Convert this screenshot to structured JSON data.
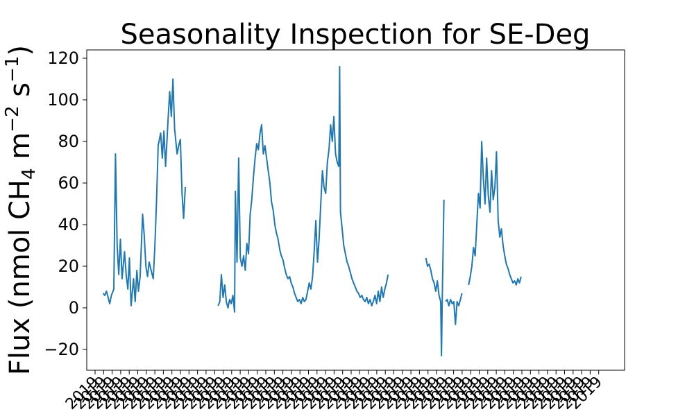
{
  "chart_data": {
    "type": "line",
    "title": "Seasonality Inspection for SE-Deg",
    "ylabel": "Flux (nmol CH",
    "ylabel_subscript": "4",
    "ylabel_mid": " m",
    "ylabel_sup1": "−2",
    "ylabel_mid2": " s",
    "ylabel_sup2": "−1",
    "ylabel_end": ")",
    "xlabel": "",
    "ylim": [
      -30,
      124
    ],
    "xlim": [
      2016.85,
      2023.4
    ],
    "yticks": [
      -20,
      0,
      20,
      40,
      60,
      80,
      100,
      120
    ],
    "ytick_labels": [
      "−20",
      "0",
      "20",
      "40",
      "60",
      "80",
      "100",
      "120"
    ],
    "xtick_label": "2019",
    "xtick_count": 60,
    "grid": false,
    "legend": "none",
    "line_color": "#1f77b4",
    "series": [
      {
        "segments": [
          [
            [
              2017.05,
              7
            ],
            [
              2017.07,
              6
            ],
            [
              2017.09,
              8
            ],
            [
              2017.11,
              5
            ],
            [
              2017.13,
              2
            ],
            [
              2017.15,
              6
            ],
            [
              2017.18,
              9
            ],
            [
              2017.2,
              74
            ],
            [
              2017.22,
              30
            ],
            [
              2017.24,
              16
            ],
            [
              2017.26,
              33
            ],
            [
              2017.28,
              14
            ],
            [
              2017.31,
              27
            ],
            [
              2017.33,
              16
            ],
            [
              2017.35,
              9
            ],
            [
              2017.37,
              24
            ],
            [
              2017.39,
              1
            ],
            [
              2017.42,
              14
            ],
            [
              2017.44,
              3
            ],
            [
              2017.46,
              18
            ],
            [
              2017.48,
              8
            ],
            [
              2017.5,
              15
            ],
            [
              2017.53,
              45
            ],
            [
              2017.55,
              35
            ],
            [
              2017.57,
              20
            ],
            [
              2017.59,
              15
            ],
            [
              2017.61,
              22
            ],
            [
              2017.64,
              17
            ],
            [
              2017.66,
              14
            ],
            [
              2017.68,
              30
            ],
            [
              2017.7,
              52
            ],
            [
              2017.72,
              78
            ],
            [
              2017.75,
              84
            ],
            [
              2017.77,
              72
            ],
            [
              2017.79,
              85
            ],
            [
              2017.81,
              68
            ],
            [
              2017.84,
              90
            ],
            [
              2017.86,
              104
            ],
            [
              2017.88,
              92
            ],
            [
              2017.9,
              110
            ],
            [
              2017.92,
              86
            ],
            [
              2017.95,
              74
            ],
            [
              2017.97,
              78
            ],
            [
              2017.99,
              81
            ],
            [
              2018.01,
              55
            ],
            [
              2018.03,
              43
            ],
            [
              2018.05,
              58
            ]
          ],
          [
            [
              2018.45,
              1
            ],
            [
              2018.47,
              3
            ],
            [
              2018.49,
              16
            ],
            [
              2018.51,
              5
            ],
            [
              2018.53,
              11
            ],
            [
              2018.55,
              3
            ],
            [
              2018.57,
              0
            ],
            [
              2018.59,
              4
            ],
            [
              2018.61,
              2
            ],
            [
              2018.63,
              6
            ],
            [
              2018.65,
              -2
            ],
            [
              2018.66,
              56
            ],
            [
              2018.68,
              22
            ],
            [
              2018.7,
              72
            ],
            [
              2018.72,
              24
            ],
            [
              2018.74,
              20
            ],
            [
              2018.76,
              25
            ],
            [
              2018.78,
              18
            ],
            [
              2018.8,
              31
            ],
            [
              2018.82,
              26
            ],
            [
              2018.84,
              45
            ],
            [
              2018.86,
              52
            ],
            [
              2018.88,
              63
            ],
            [
              2018.9,
              72
            ],
            [
              2018.92,
              79
            ],
            [
              2018.94,
              76
            ],
            [
              2018.96,
              84
            ],
            [
              2018.98,
              88
            ],
            [
              2019.0,
              74
            ],
            [
              2019.02,
              78
            ],
            [
              2019.04,
              72
            ],
            [
              2019.06,
              66
            ],
            [
              2019.08,
              60
            ],
            [
              2019.1,
              51
            ],
            [
              2019.12,
              47
            ],
            [
              2019.14,
              40
            ],
            [
              2019.16,
              36
            ],
            [
              2019.18,
              33
            ],
            [
              2019.2,
              28
            ],
            [
              2019.22,
              25
            ],
            [
              2019.24,
              23
            ],
            [
              2019.26,
              19
            ],
            [
              2019.28,
              16
            ],
            [
              2019.3,
              14
            ],
            [
              2019.32,
              15
            ],
            [
              2019.34,
              12
            ],
            [
              2019.36,
              10
            ],
            [
              2019.38,
              7
            ],
            [
              2019.4,
              5
            ],
            [
              2019.42,
              3
            ],
            [
              2019.44,
              4
            ],
            [
              2019.46,
              2
            ],
            [
              2019.48,
              5
            ],
            [
              2019.5,
              3
            ],
            [
              2019.52,
              4
            ],
            [
              2019.54,
              8
            ],
            [
              2019.56,
              12
            ],
            [
              2019.58,
              9
            ],
            [
              2019.6,
              15
            ],
            [
              2019.62,
              27
            ],
            [
              2019.64,
              42
            ],
            [
              2019.66,
              22
            ],
            [
              2019.68,
              33
            ],
            [
              2019.7,
              50
            ],
            [
              2019.72,
              66
            ],
            [
              2019.74,
              58
            ],
            [
              2019.76,
              55
            ],
            [
              2019.78,
              70
            ],
            [
              2019.8,
              76
            ],
            [
              2019.82,
              88
            ],
            [
              2019.84,
              80
            ],
            [
              2019.86,
              92
            ],
            [
              2019.88,
              74
            ],
            [
              2019.9,
              70
            ],
            [
              2019.92,
              68
            ],
            [
              2019.93,
              116
            ],
            [
              2019.94,
              46
            ],
            [
              2019.96,
              38
            ],
            [
              2019.98,
              30
            ],
            [
              2020.0,
              26
            ],
            [
              2020.02,
              22
            ],
            [
              2020.04,
              20
            ],
            [
              2020.06,
              17
            ],
            [
              2020.08,
              14
            ],
            [
              2020.1,
              12
            ],
            [
              2020.12,
              10
            ],
            [
              2020.14,
              8
            ],
            [
              2020.16,
              7
            ],
            [
              2020.18,
              5
            ],
            [
              2020.2,
              6
            ],
            [
              2020.22,
              4
            ],
            [
              2020.24,
              3
            ],
            [
              2020.26,
              5
            ],
            [
              2020.28,
              2
            ],
            [
              2020.3,
              4
            ],
            [
              2020.32,
              1
            ],
            [
              2020.34,
              3
            ],
            [
              2020.36,
              6
            ],
            [
              2020.38,
              2
            ],
            [
              2020.4,
              8
            ],
            [
              2020.42,
              3
            ],
            [
              2020.44,
              10
            ],
            [
              2020.46,
              5
            ],
            [
              2020.48,
              9
            ],
            [
              2020.5,
              12
            ],
            [
              2020.52,
              16
            ]
          ],
          [
            [
              2020.98,
              24
            ],
            [
              2021.0,
              20
            ],
            [
              2021.02,
              21
            ],
            [
              2021.04,
              18
            ],
            [
              2021.06,
              14
            ],
            [
              2021.08,
              12
            ],
            [
              2021.1,
              8
            ],
            [
              2021.12,
              13
            ],
            [
              2021.14,
              6
            ],
            [
              2021.16,
              3
            ],
            [
              2021.17,
              -23
            ],
            [
              2021.18,
              5
            ],
            [
              2021.2,
              52
            ]
          ],
          [
            [
              2021.22,
              3
            ],
            [
              2021.24,
              4
            ],
            [
              2021.26,
              1
            ],
            [
              2021.28,
              4
            ],
            [
              2021.3,
              2
            ],
            [
              2021.32,
              3
            ],
            [
              2021.34,
              -8
            ],
            [
              2021.36,
              3
            ],
            [
              2021.38,
              1
            ],
            [
              2021.4,
              4
            ],
            [
              2021.42,
              7
            ]
          ],
          [
            [
              2021.5,
              11
            ],
            [
              2021.52,
              15
            ],
            [
              2021.54,
              20
            ],
            [
              2021.56,
              29
            ],
            [
              2021.58,
              25
            ],
            [
              2021.6,
              40
            ],
            [
              2021.62,
              55
            ],
            [
              2021.64,
              48
            ],
            [
              2021.66,
              80
            ],
            [
              2021.68,
              62
            ],
            [
              2021.7,
              50
            ],
            [
              2021.72,
              72
            ],
            [
              2021.74,
              54
            ],
            [
              2021.76,
              46
            ],
            [
              2021.78,
              66
            ],
            [
              2021.8,
              52
            ],
            [
              2021.82,
              58
            ],
            [
              2021.84,
              75
            ],
            [
              2021.86,
              42
            ],
            [
              2021.88,
              34
            ],
            [
              2021.9,
              38
            ],
            [
              2021.92,
              30
            ],
            [
              2021.94,
              25
            ],
            [
              2021.96,
              21
            ],
            [
              2021.98,
              19
            ],
            [
              2022.0,
              16
            ],
            [
              2022.02,
              14
            ],
            [
              2022.04,
              12
            ],
            [
              2022.06,
              13
            ],
            [
              2022.08,
              11
            ],
            [
              2022.1,
              14
            ],
            [
              2022.12,
              12
            ],
            [
              2022.14,
              15
            ]
          ]
        ]
      }
    ]
  }
}
